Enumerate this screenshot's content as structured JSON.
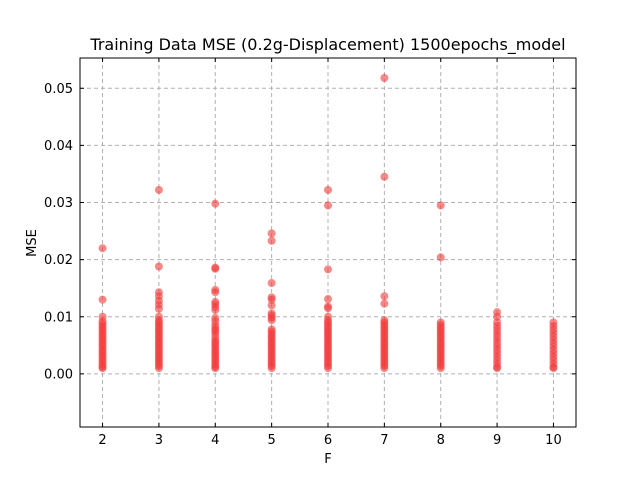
{
  "chart_data": {
    "type": "scatter",
    "title": "Training Data MSE (0.2g-Displacement) 1500epochs_model",
    "xlabel": "F",
    "ylabel": "MSE",
    "xlim": [
      1.6,
      10.4
    ],
    "ylim": [
      -0.0093,
      0.0553
    ],
    "xticks": [
      2,
      3,
      4,
      5,
      6,
      7,
      8,
      9,
      10
    ],
    "yticks": [
      0.0,
      0.01,
      0.02,
      0.03,
      0.04,
      0.05
    ],
    "ytick_labels": [
      "0.00",
      "0.01",
      "0.02",
      "0.03",
      "0.04",
      "0.05"
    ],
    "grid": true,
    "marker_color": "#f23a3a",
    "marker_alpha": 0.6,
    "series": [
      {
        "points": [
          [
            2,
            0.022
          ],
          [
            2,
            0.013
          ],
          [
            2,
            0.01
          ],
          [
            2,
            0.0092
          ],
          [
            2,
            0.0088
          ],
          [
            2,
            0.0084
          ],
          [
            2,
            0.008
          ],
          [
            2,
            0.0076
          ],
          [
            2,
            0.0072
          ],
          [
            2,
            0.0068
          ],
          [
            2,
            0.0064
          ],
          [
            2,
            0.006
          ],
          [
            2,
            0.0056
          ],
          [
            2,
            0.0052
          ],
          [
            2,
            0.0048
          ],
          [
            2,
            0.0044
          ],
          [
            2,
            0.004
          ],
          [
            2,
            0.0036
          ],
          [
            2,
            0.0032
          ],
          [
            2,
            0.0028
          ],
          [
            2,
            0.0024
          ],
          [
            2,
            0.002
          ],
          [
            2,
            0.0016
          ],
          [
            2,
            0.0012
          ],
          [
            2,
            0.001
          ],
          [
            3,
            0.0322
          ],
          [
            3,
            0.0188
          ],
          [
            3,
            0.0143
          ],
          [
            3,
            0.0136
          ],
          [
            3,
            0.0128
          ],
          [
            3,
            0.0121
          ],
          [
            3,
            0.0114
          ],
          [
            3,
            0.01
          ],
          [
            3,
            0.0094
          ],
          [
            3,
            0.009
          ],
          [
            3,
            0.0086
          ],
          [
            3,
            0.0082
          ],
          [
            3,
            0.0078
          ],
          [
            3,
            0.0074
          ],
          [
            3,
            0.007
          ],
          [
            3,
            0.0066
          ],
          [
            3,
            0.0062
          ],
          [
            3,
            0.0058
          ],
          [
            3,
            0.0054
          ],
          [
            3,
            0.005
          ],
          [
            3,
            0.0046
          ],
          [
            3,
            0.0042
          ],
          [
            3,
            0.0038
          ],
          [
            3,
            0.0034
          ],
          [
            3,
            0.003
          ],
          [
            3,
            0.0026
          ],
          [
            3,
            0.0022
          ],
          [
            3,
            0.0018
          ],
          [
            3,
            0.0014
          ],
          [
            3,
            0.001
          ],
          [
            4,
            0.0298
          ],
          [
            4,
            0.0186
          ],
          [
            4,
            0.0184
          ],
          [
            4,
            0.0147
          ],
          [
            4,
            0.0143
          ],
          [
            4,
            0.0126
          ],
          [
            4,
            0.0122
          ],
          [
            4,
            0.0117
          ],
          [
            4,
            0.0112
          ],
          [
            4,
            0.0098
          ],
          [
            4,
            0.0092
          ],
          [
            4,
            0.0085
          ],
          [
            4,
            0.008
          ],
          [
            4,
            0.0076
          ],
          [
            4,
            0.0072
          ],
          [
            4,
            0.0066
          ],
          [
            4,
            0.006
          ],
          [
            4,
            0.0056
          ],
          [
            4,
            0.0052
          ],
          [
            4,
            0.0048
          ],
          [
            4,
            0.0044
          ],
          [
            4,
            0.004
          ],
          [
            4,
            0.0036
          ],
          [
            4,
            0.0032
          ],
          [
            4,
            0.0028
          ],
          [
            4,
            0.0024
          ],
          [
            4,
            0.002
          ],
          [
            4,
            0.0016
          ],
          [
            4,
            0.0012
          ],
          [
            4,
            0.001
          ],
          [
            5,
            0.0246
          ],
          [
            5,
            0.0233
          ],
          [
            5,
            0.0159
          ],
          [
            5,
            0.0134
          ],
          [
            5,
            0.013
          ],
          [
            5,
            0.012
          ],
          [
            5,
            0.0106
          ],
          [
            5,
            0.0102
          ],
          [
            5,
            0.0098
          ],
          [
            5,
            0.0094
          ],
          [
            5,
            0.0078
          ],
          [
            5,
            0.0074
          ],
          [
            5,
            0.007
          ],
          [
            5,
            0.0066
          ],
          [
            5,
            0.0062
          ],
          [
            5,
            0.0058
          ],
          [
            5,
            0.0054
          ],
          [
            5,
            0.005
          ],
          [
            5,
            0.0046
          ],
          [
            5,
            0.0042
          ],
          [
            5,
            0.0038
          ],
          [
            5,
            0.0034
          ],
          [
            5,
            0.003
          ],
          [
            5,
            0.0026
          ],
          [
            5,
            0.0022
          ],
          [
            5,
            0.0018
          ],
          [
            5,
            0.0014
          ],
          [
            5,
            0.001
          ],
          [
            6,
            0.0322
          ],
          [
            6,
            0.0295
          ],
          [
            6,
            0.0183
          ],
          [
            6,
            0.0131
          ],
          [
            6,
            0.0118
          ],
          [
            6,
            0.0115
          ],
          [
            6,
            0.01
          ],
          [
            6,
            0.0094
          ],
          [
            6,
            0.009
          ],
          [
            6,
            0.0086
          ],
          [
            6,
            0.0082
          ],
          [
            6,
            0.0078
          ],
          [
            6,
            0.0074
          ],
          [
            6,
            0.007
          ],
          [
            6,
            0.0066
          ],
          [
            6,
            0.0062
          ],
          [
            6,
            0.0058
          ],
          [
            6,
            0.0054
          ],
          [
            6,
            0.005
          ],
          [
            6,
            0.0046
          ],
          [
            6,
            0.0042
          ],
          [
            6,
            0.0038
          ],
          [
            6,
            0.0034
          ],
          [
            6,
            0.003
          ],
          [
            6,
            0.0026
          ],
          [
            6,
            0.0022
          ],
          [
            6,
            0.0018
          ],
          [
            6,
            0.0014
          ],
          [
            6,
            0.001
          ],
          [
            7,
            0.0518
          ],
          [
            7,
            0.0345
          ],
          [
            7,
            0.0136
          ],
          [
            7,
            0.0123
          ],
          [
            7,
            0.0094
          ],
          [
            7,
            0.009
          ],
          [
            7,
            0.0086
          ],
          [
            7,
            0.0082
          ],
          [
            7,
            0.0078
          ],
          [
            7,
            0.0074
          ],
          [
            7,
            0.007
          ],
          [
            7,
            0.0066
          ],
          [
            7,
            0.0062
          ],
          [
            7,
            0.0058
          ],
          [
            7,
            0.0054
          ],
          [
            7,
            0.005
          ],
          [
            7,
            0.0046
          ],
          [
            7,
            0.0042
          ],
          [
            7,
            0.0038
          ],
          [
            7,
            0.0034
          ],
          [
            7,
            0.003
          ],
          [
            7,
            0.0026
          ],
          [
            7,
            0.0022
          ],
          [
            7,
            0.0018
          ],
          [
            7,
            0.0014
          ],
          [
            7,
            0.001
          ],
          [
            8,
            0.0295
          ],
          [
            8,
            0.0204
          ],
          [
            8,
            0.009
          ],
          [
            8,
            0.0086
          ],
          [
            8,
            0.0082
          ],
          [
            8,
            0.0078
          ],
          [
            8,
            0.0074
          ],
          [
            8,
            0.007
          ],
          [
            8,
            0.0066
          ],
          [
            8,
            0.0062
          ],
          [
            8,
            0.0058
          ],
          [
            8,
            0.0054
          ],
          [
            8,
            0.005
          ],
          [
            8,
            0.0046
          ],
          [
            8,
            0.0042
          ],
          [
            8,
            0.0038
          ],
          [
            8,
            0.0034
          ],
          [
            8,
            0.003
          ],
          [
            8,
            0.0026
          ],
          [
            8,
            0.0022
          ],
          [
            8,
            0.0018
          ],
          [
            8,
            0.0014
          ],
          [
            8,
            0.001
          ],
          [
            9,
            0.0108
          ],
          [
            9,
            0.01
          ],
          [
            9,
            0.009
          ],
          [
            9,
            0.0084
          ],
          [
            9,
            0.0078
          ],
          [
            9,
            0.0072
          ],
          [
            9,
            0.0066
          ],
          [
            9,
            0.006
          ],
          [
            9,
            0.0054
          ],
          [
            9,
            0.0048
          ],
          [
            9,
            0.0042
          ],
          [
            9,
            0.0036
          ],
          [
            9,
            0.003
          ],
          [
            9,
            0.0024
          ],
          [
            9,
            0.0018
          ],
          [
            9,
            0.0012
          ],
          [
            9,
            0.001
          ],
          [
            10,
            0.009
          ],
          [
            10,
            0.0084
          ],
          [
            10,
            0.0078
          ],
          [
            10,
            0.0072
          ],
          [
            10,
            0.0066
          ],
          [
            10,
            0.006
          ],
          [
            10,
            0.0054
          ],
          [
            10,
            0.0048
          ],
          [
            10,
            0.0042
          ],
          [
            10,
            0.0036
          ],
          [
            10,
            0.003
          ],
          [
            10,
            0.0024
          ],
          [
            10,
            0.0018
          ],
          [
            10,
            0.0012
          ],
          [
            10,
            0.001
          ]
        ]
      }
    ]
  }
}
